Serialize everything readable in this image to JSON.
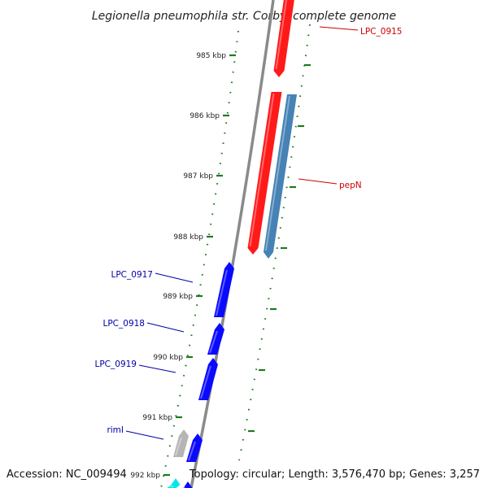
{
  "title": "Legionella pneumophila str. Corby, complete genome",
  "footer": {
    "accession": "Accession: NC_009494",
    "summary": "Topology: circular; Length: 3,576,470 bp; Genes: 3,257"
  },
  "colors": {
    "backbone": "#7f7f7f",
    "tick": "#1f7a1f",
    "red_gene": "#ff1a1a",
    "blue_gene": "#0a0aff",
    "steel_gene": "#4682b4",
    "gray_gene": "#b5b5b5",
    "cyan_gene": "#00e5ee",
    "label_red": "#cc0000",
    "label_blue": "#0000aa"
  },
  "ticks": [
    {
      "label": "985 kbp"
    },
    {
      "label": "986 kbp"
    },
    {
      "label": "987 kbp"
    },
    {
      "label": "988 kbp"
    },
    {
      "label": "989 kbp"
    },
    {
      "label": "990 kbp"
    },
    {
      "label": "991 kbp"
    },
    {
      "label": "992 kbp"
    }
  ],
  "genes": [
    {
      "label": "LPC_0915",
      "color": "red",
      "strand": "forward"
    },
    {
      "label": "pepN",
      "color": "red",
      "strand": "forward"
    },
    {
      "label": "",
      "color": "steel",
      "strand": "forward"
    },
    {
      "label": "LPC_0917",
      "color": "blue",
      "strand": "reverse"
    },
    {
      "label": "LPC_0918",
      "color": "blue",
      "strand": "reverse"
    },
    {
      "label": "LPC_0919",
      "color": "blue",
      "strand": "reverse"
    },
    {
      "label": "rimI",
      "color": "gray",
      "strand": "reverse"
    },
    {
      "label": "",
      "color": "blue",
      "strand": "reverse"
    },
    {
      "label": "",
      "color": "cyan",
      "strand": "reverse"
    },
    {
      "label": "",
      "color": "blue",
      "strand": "reverse"
    }
  ]
}
